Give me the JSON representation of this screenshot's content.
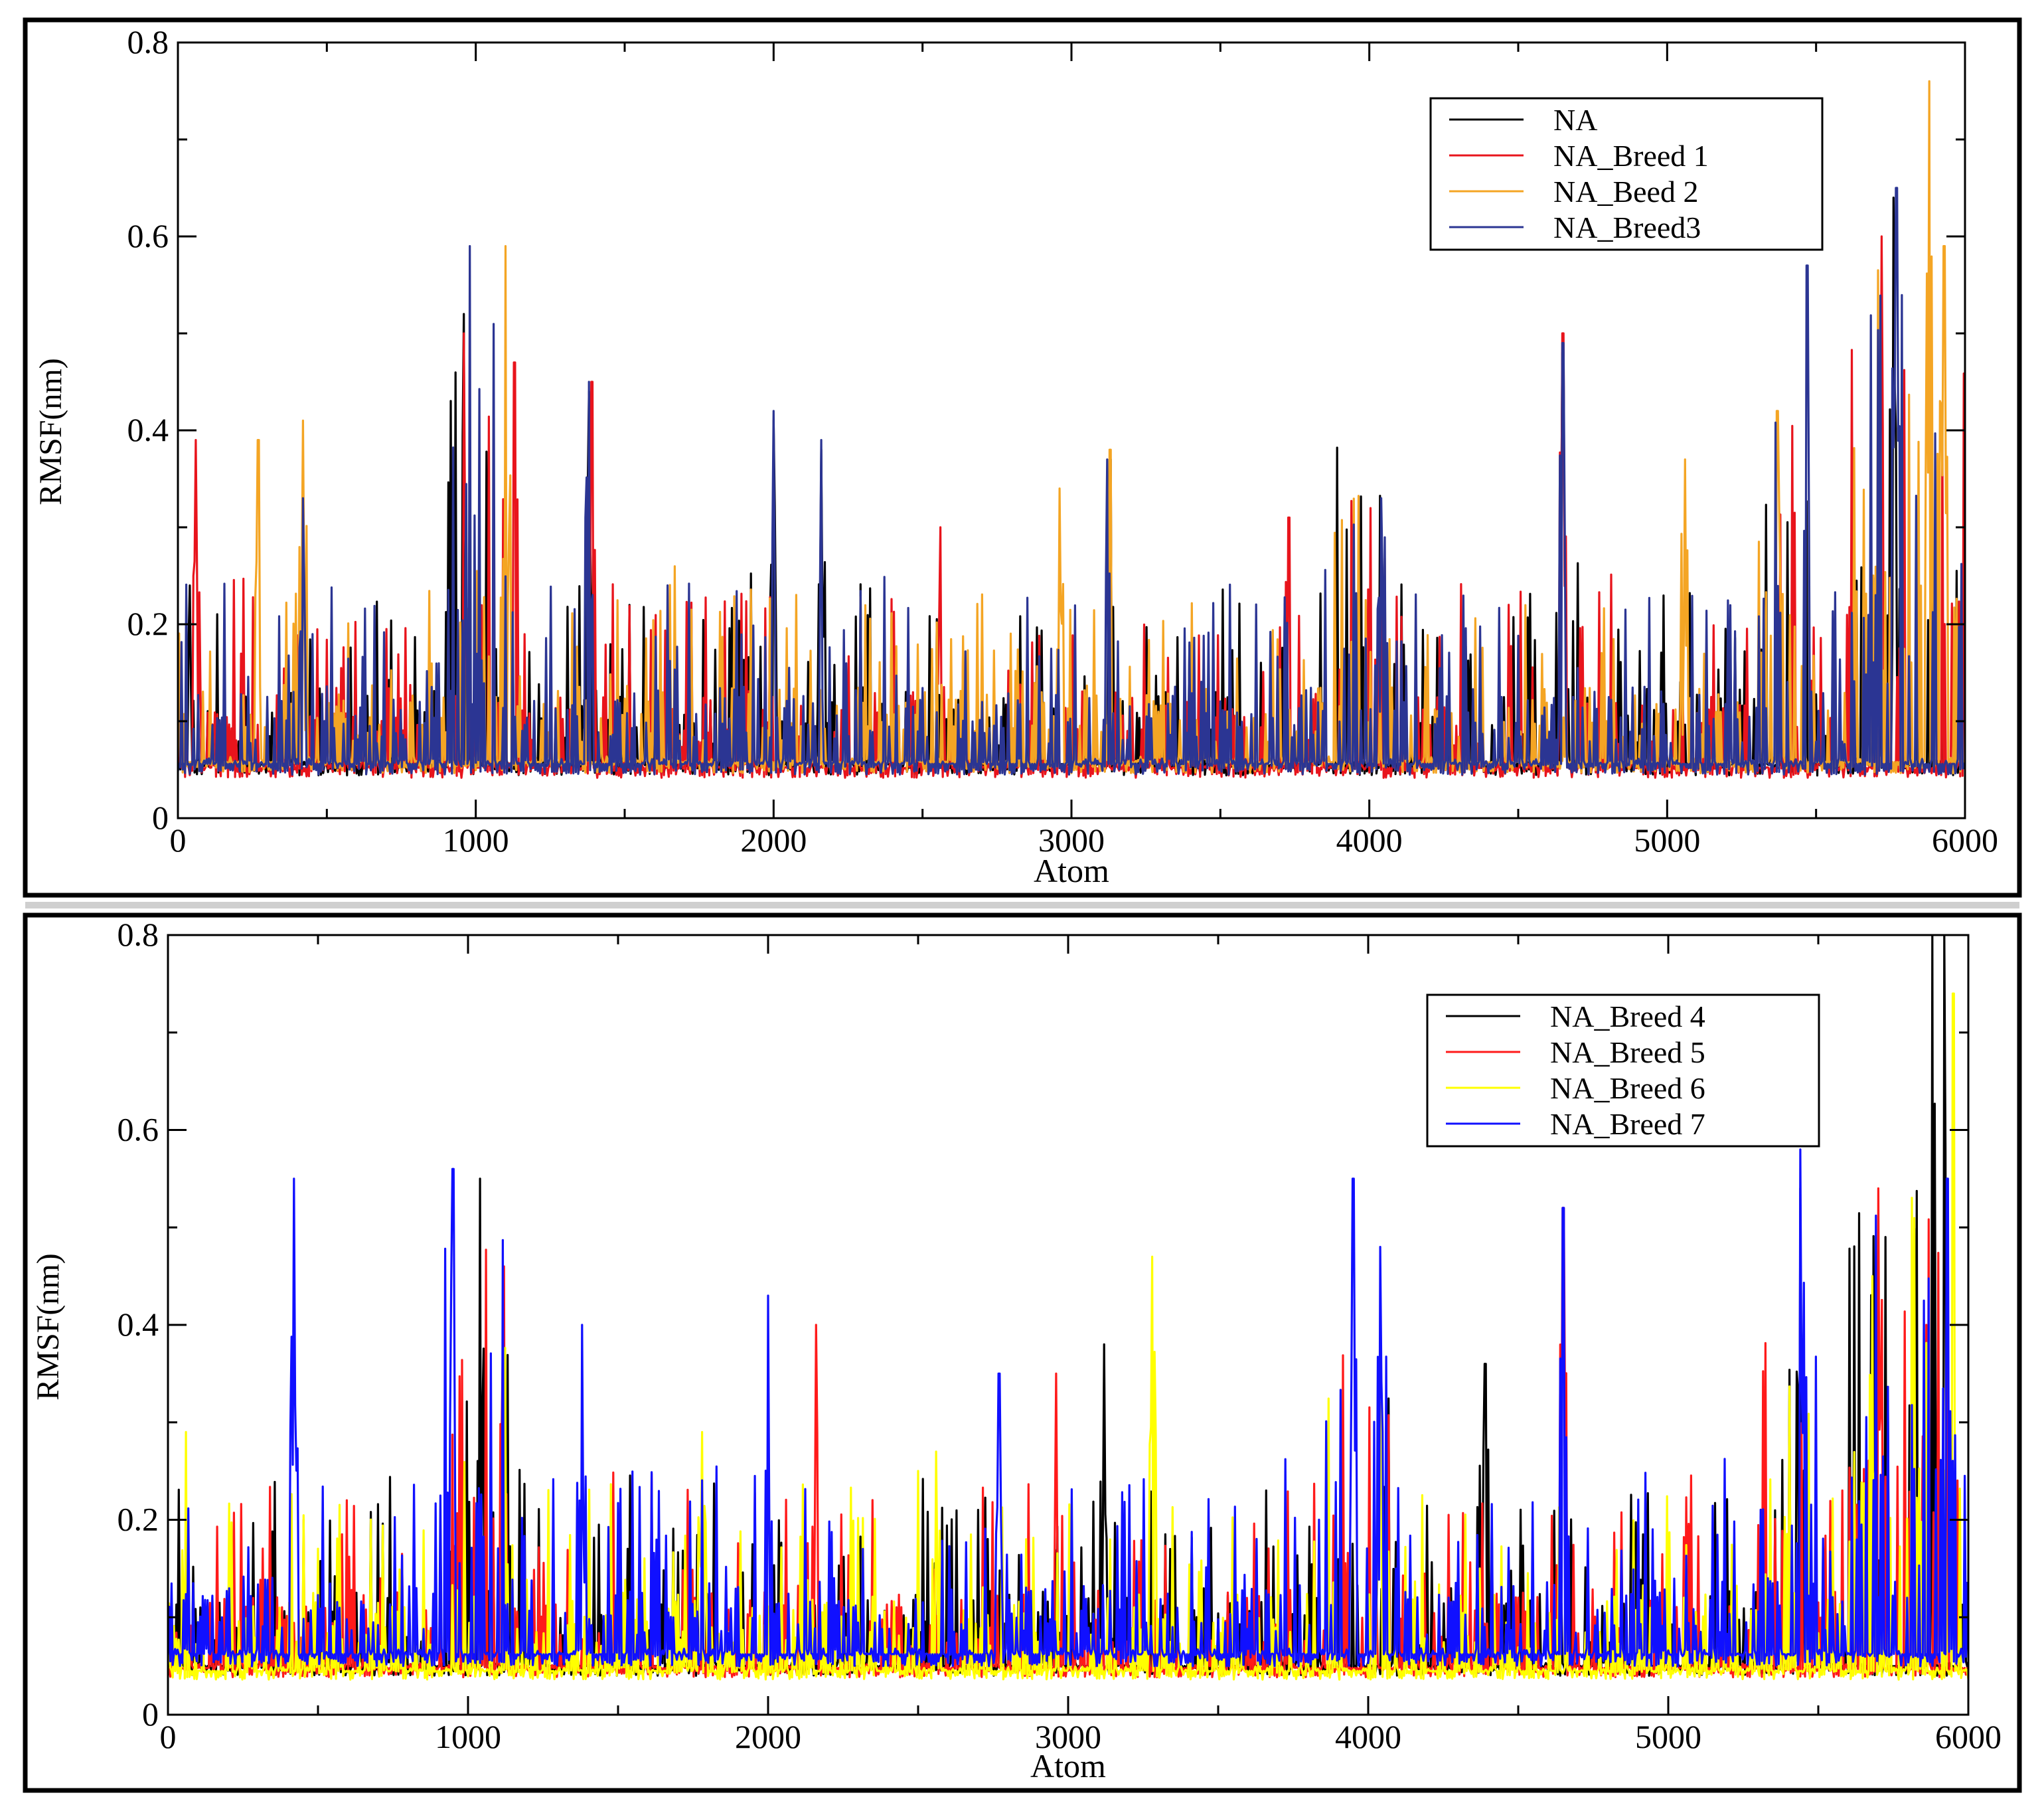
{
  "chart_data": [
    {
      "type": "line",
      "title": "",
      "xlabel": "Atom",
      "ylabel": "RMSF(nm)",
      "xlim": [
        0,
        6000
      ],
      "ylim": [
        0,
        0.8
      ],
      "xticks": [
        "0",
        "1000",
        "2000",
        "3000",
        "4000",
        "5000",
        "6000"
      ],
      "yticks": [
        "0",
        "0.2",
        "0.4",
        "0.6",
        "0.8"
      ],
      "legend_position": "top-right",
      "series": [
        {
          "name": "NA",
          "color": "#000000",
          "baseline": 0.055,
          "peaks": [
            [
              40,
              0.24
            ],
            [
              960,
              0.52
            ],
            [
              1380,
              0.44
            ],
            [
              2000,
              0.41
            ],
            [
              2160,
              0.38
            ],
            [
              3130,
              0.37
            ],
            [
              4650,
              0.48
            ],
            [
              5760,
              0.64
            ]
          ]
        },
        {
          "name": "NA_Breed 1",
          "color": "#e8141c",
          "baseline": 0.052,
          "peaks": [
            [
              60,
              0.39
            ],
            [
              960,
              0.5
            ],
            [
              1130,
              0.47
            ],
            [
              1390,
              0.45
            ],
            [
              2560,
              0.3
            ],
            [
              3730,
              0.31
            ],
            [
              4650,
              0.5
            ],
            [
              5720,
              0.6
            ]
          ]
        },
        {
          "name": "NA_Beed 2",
          "color": "#f4a524",
          "baseline": 0.058,
          "peaks": [
            [
              270,
              0.39
            ],
            [
              420,
              0.41
            ],
            [
              1100,
              0.59
            ],
            [
              2960,
              0.34
            ],
            [
              3130,
              0.38
            ],
            [
              5060,
              0.37
            ],
            [
              5370,
              0.42
            ],
            [
              5880,
              0.76
            ],
            [
              5930,
              0.59
            ]
          ]
        },
        {
          "name": "NA_Breed3",
          "color": "#2b3593",
          "baseline": 0.056,
          "peaks": [
            [
              420,
              0.33
            ],
            [
              980,
              0.59
            ],
            [
              1380,
              0.45
            ],
            [
              2000,
              0.42
            ],
            [
              2160,
              0.39
            ],
            [
              3120,
              0.37
            ],
            [
              4040,
              0.33
            ],
            [
              4650,
              0.49
            ],
            [
              5470,
              0.57
            ],
            [
              5770,
              0.65
            ]
          ]
        }
      ]
    },
    {
      "type": "line",
      "title": "",
      "xlabel": "Atom",
      "ylabel": "RMSF(nm)",
      "xlim": [
        0,
        6000
      ],
      "ylim": [
        0,
        0.8
      ],
      "xticks": [
        "0",
        "1000",
        "2000",
        "3000",
        "4000",
        "5000",
        "6000"
      ],
      "yticks": [
        "0",
        "0.2",
        "0.4",
        "0.6",
        "0.8"
      ],
      "legend_position": "top-right",
      "series": [
        {
          "name": "NA_Breed 4",
          "color": "#000000",
          "baseline": 0.05,
          "peaks": [
            [
              1040,
              0.55
            ],
            [
              3120,
              0.38
            ],
            [
              4390,
              0.36
            ],
            [
              5440,
              0.54
            ],
            [
              5880,
              0.8
            ],
            [
              5920,
              0.8
            ]
          ]
        },
        {
          "name": "NA_Breed 5",
          "color": "#ff1a1a",
          "baseline": 0.048,
          "peaks": [
            [
              1120,
              0.46
            ],
            [
              2160,
              0.4
            ],
            [
              2960,
              0.35
            ],
            [
              4650,
              0.52
            ],
            [
              5700,
              0.54
            ],
            [
              5860,
              0.4
            ]
          ]
        },
        {
          "name": "NA_Breed 6",
          "color": "#ffff00",
          "baseline": 0.045,
          "peaks": [
            [
              60,
              0.29
            ],
            [
              1780,
              0.29
            ],
            [
              2560,
              0.27
            ],
            [
              3280,
              0.47
            ],
            [
              4040,
              0.32
            ],
            [
              5680,
              0.45
            ],
            [
              5950,
              0.74
            ]
          ]
        },
        {
          "name": "NA_Breed 7",
          "color": "#1010ff",
          "baseline": 0.062,
          "peaks": [
            [
              420,
              0.55
            ],
            [
              950,
              0.56
            ],
            [
              1380,
              0.4
            ],
            [
              2000,
              0.43
            ],
            [
              2770,
              0.35
            ],
            [
              3950,
              0.55
            ],
            [
              4040,
              0.48
            ],
            [
              4650,
              0.52
            ],
            [
              5440,
              0.58
            ],
            [
              5930,
              0.55
            ]
          ]
        }
      ]
    }
  ]
}
